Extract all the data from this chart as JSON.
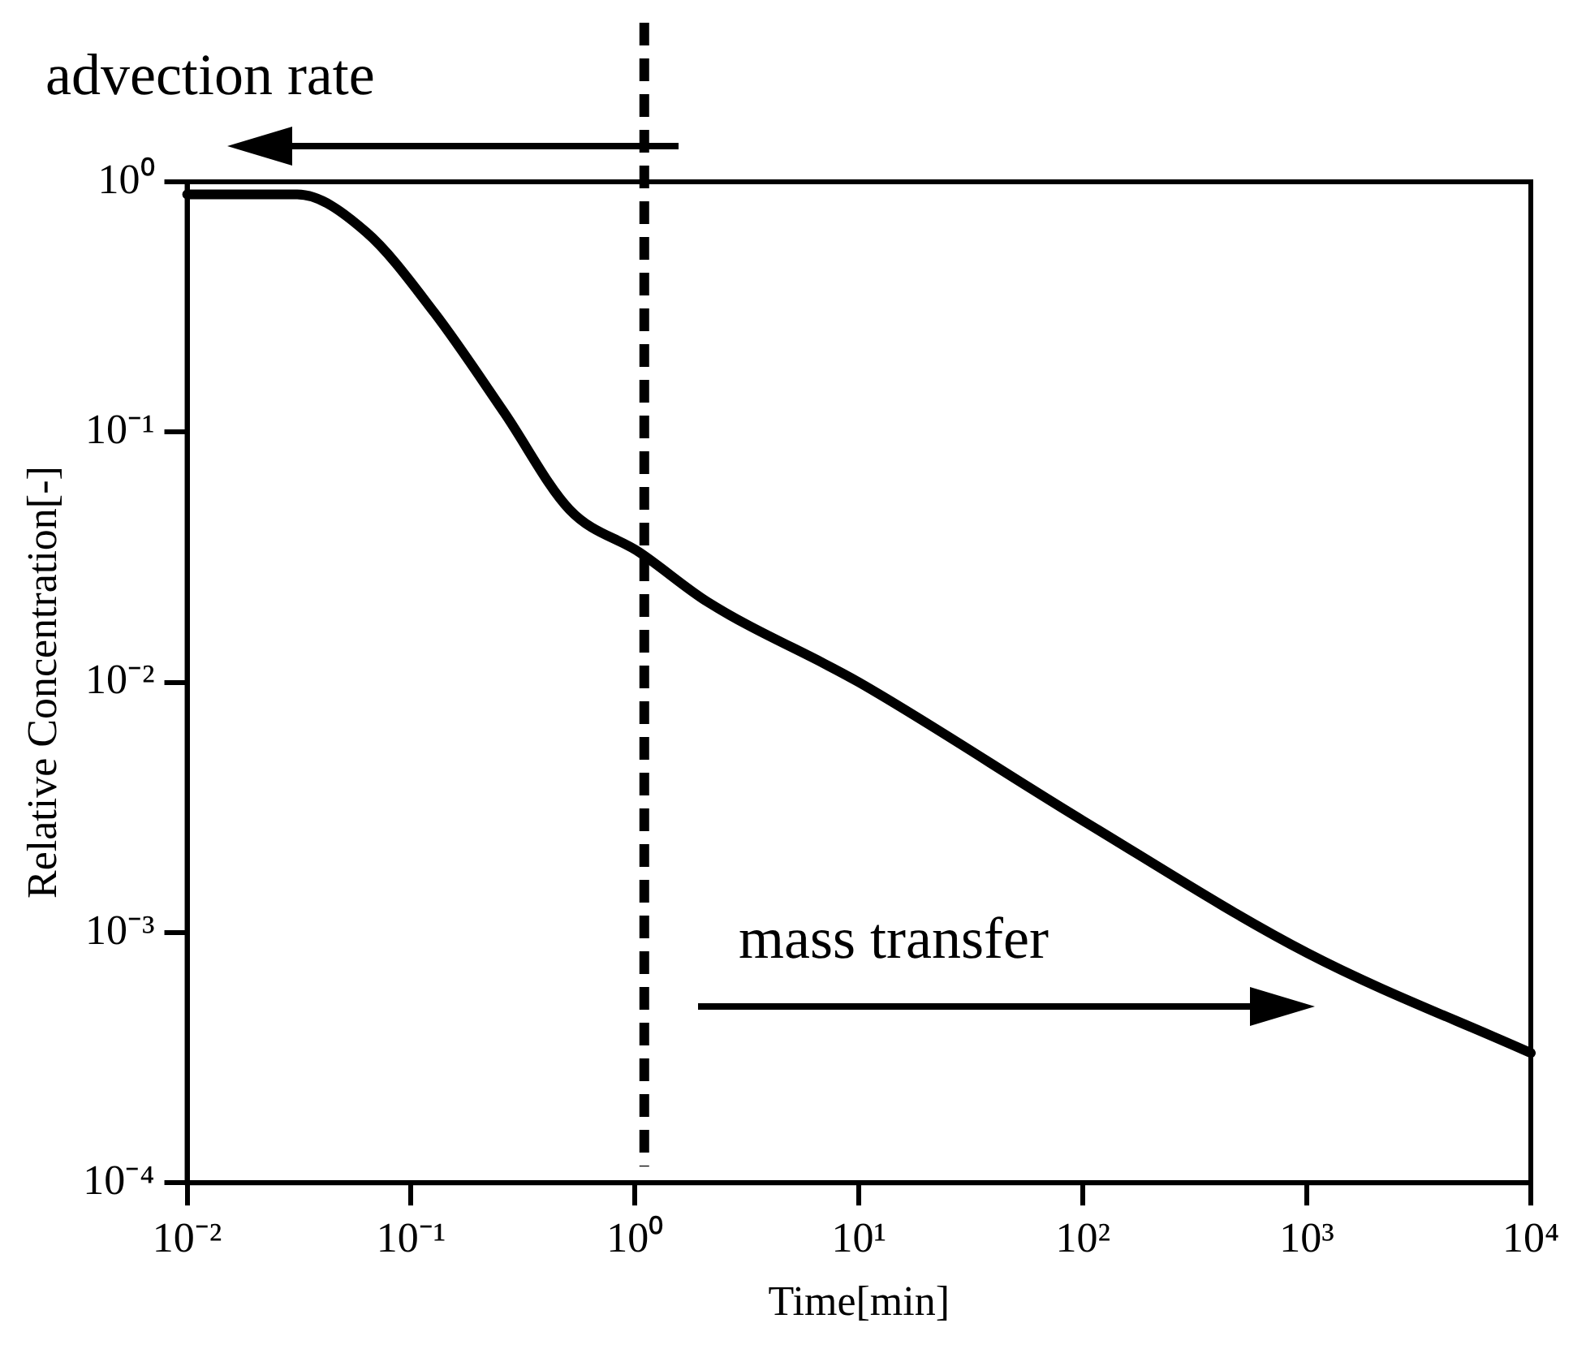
{
  "chart_data": {
    "type": "line",
    "xlabel": "Time[min]",
    "ylabel": "Relative Concentration[-]",
    "log": "xy",
    "marker": "none",
    "line_style": "solid",
    "grid": false,
    "legend": false,
    "xlim": [
      0.01,
      10000
    ],
    "ylim": [
      0.0001,
      1
    ],
    "xticks": [
      {
        "value": 0.01,
        "label": "10⁻²"
      },
      {
        "value": 0.1,
        "label": "10⁻¹"
      },
      {
        "value": 1,
        "label": "10⁰"
      },
      {
        "value": 10,
        "label": "10¹"
      },
      {
        "value": 100,
        "label": "10²"
      },
      {
        "value": 1000,
        "label": "10³"
      },
      {
        "value": 10000,
        "label": "10⁴"
      }
    ],
    "yticks": [
      {
        "value": 0.0001,
        "label": "10⁻⁴"
      },
      {
        "value": 0.001,
        "label": "10⁻³"
      },
      {
        "value": 0.01,
        "label": "10⁻²"
      },
      {
        "value": 0.1,
        "label": "10⁻¹"
      },
      {
        "value": 1,
        "label": "10⁰"
      }
    ],
    "x": [
      0.01,
      0.031,
      0.063,
      0.127,
      0.26,
      0.51,
      1.05,
      2.1,
      10,
      100,
      1000,
      10000
    ],
    "series": [
      {
        "color": "#000000",
        "values": [
          0.89,
          0.89,
          0.63,
          0.3,
          0.12,
          0.049,
          0.033,
          0.021,
          0.01,
          0.0028,
          0.00083,
          0.00033
        ]
      }
    ],
    "ref_lines": [
      {
        "axis": "x",
        "value": 1.1,
        "color": "#000000",
        "line_style": "dashed"
      }
    ],
    "annotations": [
      "advection rate",
      "mass transfer"
    ]
  }
}
